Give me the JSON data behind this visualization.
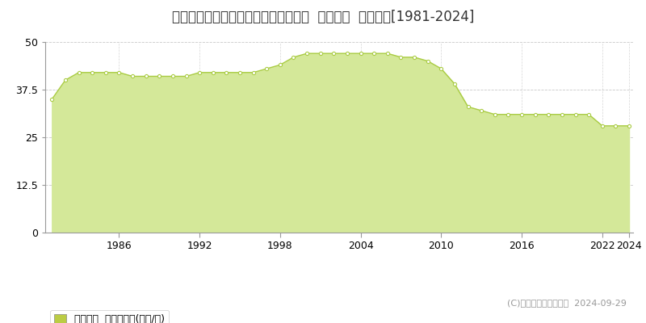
{
  "title": "高知県高知市赤石町字ミドロ８８番４  基準地価  地価推移[1981-2024]",
  "years": [
    1981,
    1982,
    1983,
    1984,
    1985,
    1986,
    1987,
    1988,
    1989,
    1990,
    1991,
    1992,
    1993,
    1994,
    1995,
    1996,
    1997,
    1998,
    1999,
    2000,
    2001,
    2002,
    2003,
    2004,
    2005,
    2006,
    2007,
    2008,
    2009,
    2010,
    2011,
    2012,
    2013,
    2014,
    2015,
    2016,
    2017,
    2018,
    2019,
    2020,
    2021,
    2022,
    2023,
    2024
  ],
  "values": [
    35,
    40,
    42,
    42,
    42,
    42,
    41,
    41,
    41,
    41,
    41,
    42,
    42,
    42,
    42,
    42,
    43,
    44,
    46,
    47,
    47,
    47,
    47,
    47,
    47,
    47,
    46,
    46,
    45,
    43,
    39,
    33,
    32,
    31,
    31,
    31,
    31,
    31,
    31,
    31,
    31,
    28,
    28,
    28
  ],
  "line_color": "#aacc44",
  "fill_color": "#d4e899",
  "marker_color": "#ffffff",
  "marker_edge_color": "#aacc44",
  "ylim": [
    0,
    50
  ],
  "yticks": [
    0,
    12.5,
    25,
    37.5,
    50
  ],
  "ytick_labels": [
    "0",
    "12.5",
    "25",
    "37.5",
    "50"
  ],
  "grid_color": "#bbbbbb",
  "background_color": "#ffffff",
  "plot_bg_color": "#ffffff",
  "copyright_text": "(C)土地価格ドットコム  2024-09-29",
  "legend_label": "基準地価  平均坪単価(万円/坪)",
  "legend_square_color": "#bbcc44",
  "title_fontsize": 12,
  "axis_fontsize": 9,
  "legend_fontsize": 9,
  "xticks": [
    1986,
    1992,
    1998,
    2004,
    2010,
    2016,
    2022,
    2024
  ],
  "xlim_min": 1981,
  "xlim_max": 2024
}
